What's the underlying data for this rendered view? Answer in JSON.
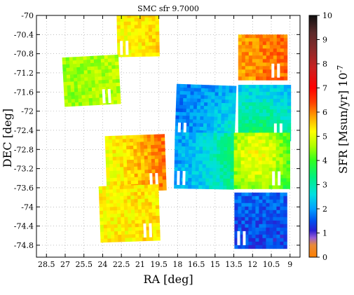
{
  "chart_data": {
    "type": "heatmap",
    "title": "SMC sfr 9.7000",
    "xlabel": "RA [deg]",
    "ylabel": "DEC [deg]",
    "colorbar_label": "SFR [Msun/yr] 10^-7",
    "colorbar_label_main": "SFR [Msun/yr] 10",
    "colorbar_label_exp": "-7",
    "x_ticks": [
      "28.5",
      "27",
      "25.5",
      "24",
      "22.5",
      "21",
      "19.5",
      "18",
      "16.5",
      "15",
      "13.5",
      "12",
      "10.5",
      "9"
    ],
    "x_tick_values": [
      28.5,
      27,
      25.5,
      24,
      22.5,
      21,
      19.5,
      18,
      16.5,
      15,
      13.5,
      12,
      10.5,
      9
    ],
    "y_ticks": [
      "-70",
      "-70.4",
      "-70.8",
      "-71.2",
      "-71.6",
      "-72",
      "-72.4",
      "-72.8",
      "-73.2",
      "-73.6",
      "-74",
      "-74.4",
      "-74.8"
    ],
    "y_tick_values": [
      -70,
      -70.4,
      -70.8,
      -71.2,
      -71.6,
      -72,
      -72.4,
      -72.8,
      -73.2,
      -73.6,
      -74,
      -74.4,
      -74.8
    ],
    "xlim": [
      29.3,
      8.2
    ],
    "ylim": [
      -75.05,
      -70.0
    ],
    "colorbar_ticks": [
      "0",
      "1",
      "2",
      "3",
      "4",
      "5",
      "6",
      "7",
      "8",
      "9",
      "10"
    ],
    "colorbar_range": [
      0,
      10
    ],
    "grid": true,
    "tiles": [
      {
        "ra": 21.2,
        "dec": -70.4,
        "ra_half": 1.65,
        "dec_half": 0.42,
        "sfr": 5.3,
        "grad": 0.1,
        "center_boost": 0,
        "rot": -1
      },
      {
        "ra": 11.2,
        "dec": -70.85,
        "ra_half": 1.95,
        "dec_half": 0.45,
        "sfr": 6.0,
        "grad": 0.2,
        "center_boost": 0,
        "rot": 0
      },
      {
        "ra": 25.0,
        "dec": -71.35,
        "ra_half": 2.15,
        "dec_half": 0.5,
        "sfr": 4.6,
        "grad": 0.1,
        "center_boost": 0,
        "rot": -3
      },
      {
        "ra": 15.85,
        "dec": -72.0,
        "ra_half": 2.3,
        "dec_half": 0.55,
        "sfr": 1.7,
        "grad": 0.0,
        "center_boost": 1.6,
        "rot": 2
      },
      {
        "ra": 11.1,
        "dec": -72.0,
        "ra_half": 2.05,
        "dec_half": 0.55,
        "sfr": 1.8,
        "grad": 0.0,
        "center_boost": 1.9,
        "rot": 0
      },
      {
        "ra": 21.4,
        "dec": -73.05,
        "ra_half": 2.35,
        "dec_half": 0.55,
        "sfr": 5.6,
        "grad": 0.5,
        "center_boost": 0,
        "rot": -2
      },
      {
        "ra": 16.0,
        "dec": -73.0,
        "ra_half": 2.25,
        "dec_half": 0.55,
        "sfr": 1.9,
        "grad": 0.0,
        "center_boost": 1.8,
        "rot": 1
      },
      {
        "ra": 11.35,
        "dec": -73.0,
        "ra_half": 2.15,
        "dec_half": 0.55,
        "sfr": 2.1,
        "grad": 0.0,
        "center_boost": 3.0,
        "rot": 0
      },
      {
        "ra": 21.9,
        "dec": -74.1,
        "ra_half": 2.35,
        "dec_half": 0.55,
        "sfr": 5.3,
        "grad": 0.1,
        "center_boost": 0,
        "rot": -2
      },
      {
        "ra": 11.4,
        "dec": -74.25,
        "ra_half": 2.05,
        "dec_half": 0.55,
        "sfr": 1.3,
        "grad": 0.0,
        "center_boost": 0.5,
        "rot": 0
      }
    ]
  }
}
